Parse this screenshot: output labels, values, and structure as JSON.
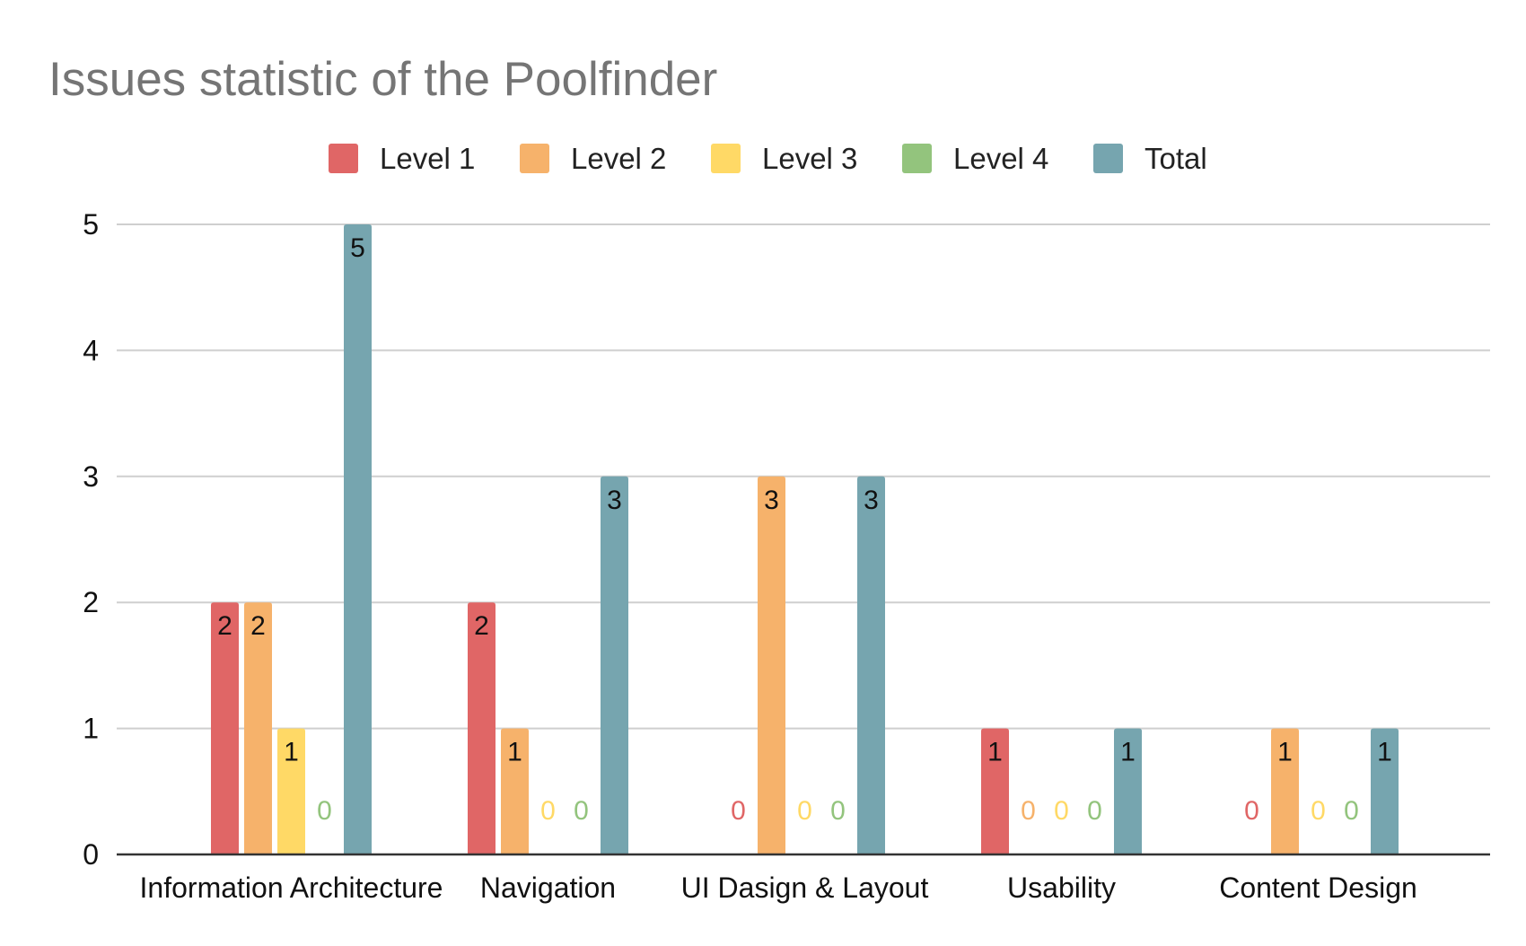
{
  "chart_data": {
    "type": "bar",
    "title": "Issues statistic of the Poolfinder",
    "xlabel": "",
    "ylabel": "",
    "ylim": [
      0,
      5
    ],
    "yticks": [
      0,
      1,
      2,
      3,
      4,
      5
    ],
    "grid": true,
    "legend": "top",
    "categories": [
      "Information Architecture",
      "Navigation",
      "UI Dasign & Layout",
      "Usability",
      "Content Design"
    ],
    "series": [
      {
        "name": "Level 1",
        "color": "#e06666",
        "values": [
          2,
          2,
          0,
          1,
          0
        ]
      },
      {
        "name": "Level 2",
        "color": "#f6b26b",
        "values": [
          2,
          1,
          3,
          0,
          1
        ]
      },
      {
        "name": "Level 3",
        "color": "#ffd966",
        "values": [
          1,
          0,
          0,
          0,
          0
        ]
      },
      {
        "name": "Level 4",
        "color": "#93c47d",
        "values": [
          0,
          0,
          0,
          0,
          0
        ]
      },
      {
        "name": "Total",
        "color": "#76a5af",
        "values": [
          5,
          3,
          3,
          1,
          1
        ]
      }
    ]
  }
}
